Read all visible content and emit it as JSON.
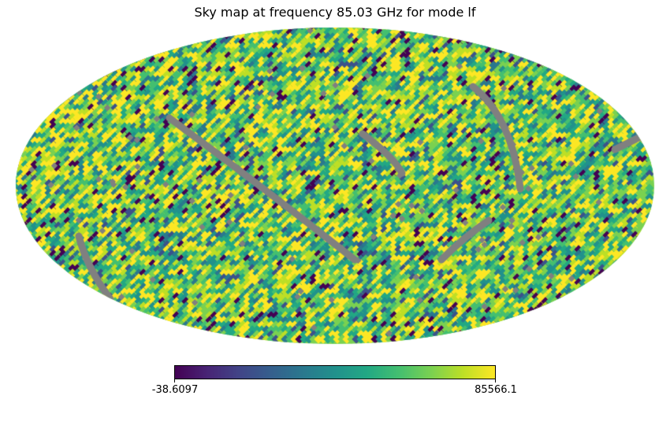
{
  "chart_data": {
    "type": "heatmap",
    "projection": "mollweide",
    "title": "Sky map at frequency 85.03 GHz for mode lf",
    "colormap": "viridis",
    "bad_color": "#808080",
    "colorbar": {
      "min_label": "-38.6097",
      "max_label": "85566.1",
      "min": -38.6097,
      "max": 85566.1,
      "placement": "bottom"
    }
  }
}
